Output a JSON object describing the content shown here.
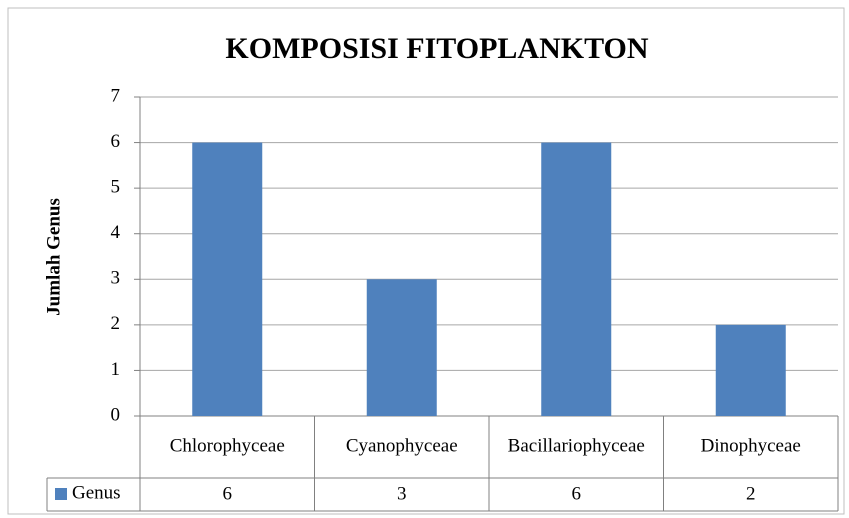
{
  "chart_data": {
    "type": "bar",
    "title": "KOMPOSISI FITOPLANKTON",
    "y_label": "Jumlah Genus",
    "categories": [
      "Chlorophyceae",
      "Cyanophyceae",
      "Bacillariophyceae",
      "Dinophyceae"
    ],
    "series": [
      {
        "name": "Genus",
        "color": "#4f81bd",
        "values": [
          6,
          3,
          6,
          2
        ]
      }
    ],
    "ylim": [
      0,
      7
    ],
    "yticks": [
      0,
      1,
      2,
      3,
      4,
      5,
      6,
      7
    ],
    "grid": true,
    "data_table": true
  }
}
